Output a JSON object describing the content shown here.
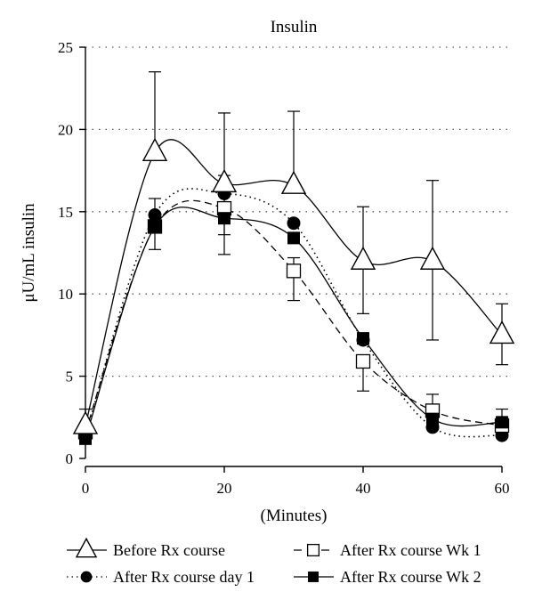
{
  "chart_data": {
    "type": "line",
    "title": "Insulin",
    "xlabel": "(Minutes)",
    "ylabel": "μU/mL insulin",
    "xlim": [
      0,
      60
    ],
    "ylim": [
      0,
      25
    ],
    "xticks": [
      0,
      20,
      40,
      60
    ],
    "yticks": [
      0,
      5,
      10,
      15,
      20,
      25
    ],
    "grid": "horizontal dotted",
    "legend_position": "bottom",
    "x": [
      0,
      10,
      20,
      30,
      40,
      50,
      60
    ],
    "series": [
      {
        "name": "Before Rx course",
        "marker": "open-triangle",
        "line_style": "solid",
        "values": [
          2.0,
          18.6,
          16.7,
          16.6,
          12.0,
          12.0,
          7.5
        ],
        "error_upper": [
          3.0,
          23.5,
          21.0,
          21.1,
          15.3,
          16.9,
          9.4
        ],
        "error_lower": [
          null,
          null,
          12.4,
          null,
          8.8,
          7.2,
          5.7
        ]
      },
      {
        "name": "After Rx course day 1",
        "marker": "filled-circle",
        "line_style": "dotted",
        "values": [
          1.4,
          14.8,
          16.1,
          14.3,
          7.2,
          1.9,
          1.4
        ],
        "error_upper": [
          null,
          15.8,
          17.2,
          null,
          null,
          null,
          null
        ],
        "error_lower": [
          null,
          null,
          null,
          null,
          null,
          null,
          null
        ]
      },
      {
        "name": "After Rx course Wk 1",
        "marker": "open-square",
        "line_style": "dashed",
        "values": [
          1.6,
          14.1,
          15.2,
          11.4,
          5.9,
          2.9,
          2.0
        ],
        "error_upper": [
          null,
          null,
          null,
          12.2,
          null,
          3.9,
          null
        ],
        "error_lower": [
          null,
          12.7,
          13.6,
          9.6,
          4.1,
          null,
          null
        ]
      },
      {
        "name": "After Rx course Wk 2",
        "marker": "filled-square",
        "line_style": "solid",
        "values": [
          1.2,
          14.1,
          14.6,
          13.4,
          7.3,
          2.4,
          2.2
        ],
        "error_upper": [
          null,
          null,
          null,
          null,
          null,
          null,
          3.0
        ],
        "error_lower": [
          null,
          null,
          null,
          null,
          null,
          null,
          null
        ]
      }
    ]
  }
}
